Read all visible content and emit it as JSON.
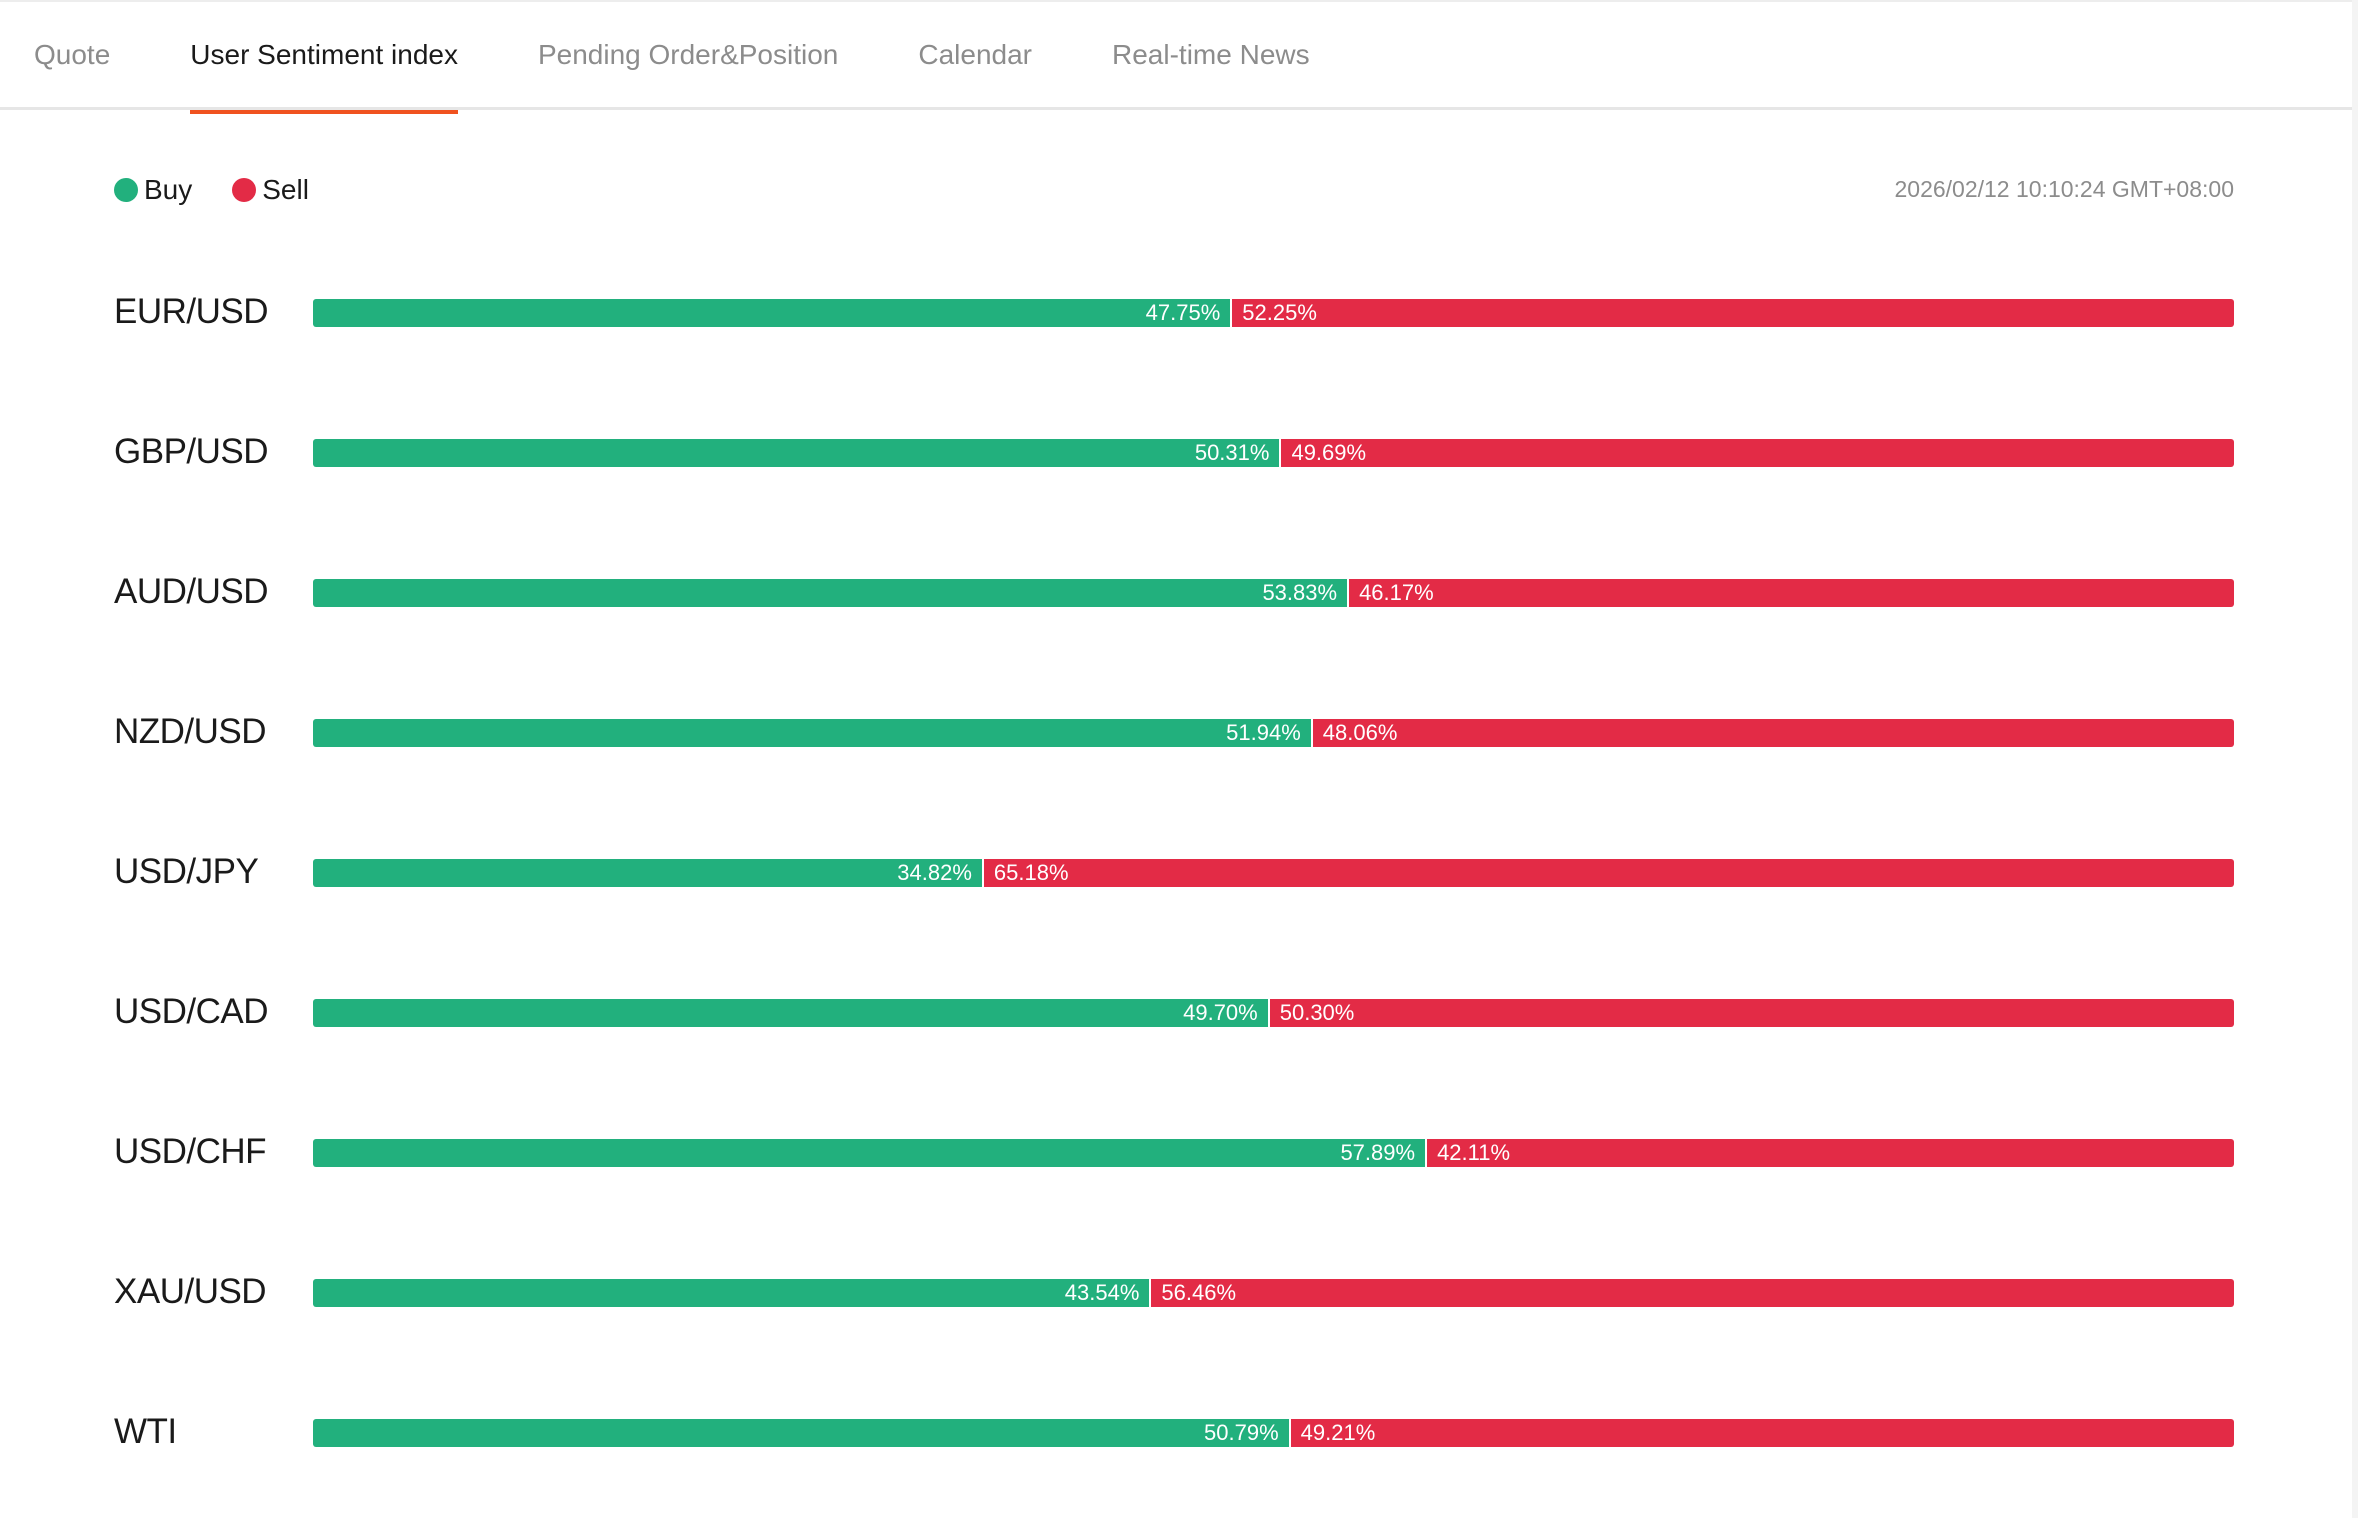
{
  "tabs": [
    {
      "label": "Quote",
      "active": false
    },
    {
      "label": "User Sentiment index",
      "active": true
    },
    {
      "label": "Pending Order&Position",
      "active": false
    },
    {
      "label": "Calendar",
      "active": false
    },
    {
      "label": "Real-time News",
      "active": false
    }
  ],
  "legend": {
    "buy_label": "Buy",
    "sell_label": "Sell"
  },
  "timestamp": "2026/02/12 10:10:24 GMT+08:00",
  "colors": {
    "buy": "#22b07d",
    "sell": "#e32b46",
    "tab_accent": "#f0521f"
  },
  "sentiment": [
    {
      "pair": "EUR/USD",
      "buy_pct": 47.75,
      "buy_label": "47.75%",
      "sell_label": "52.25%"
    },
    {
      "pair": "GBP/USD",
      "buy_pct": 50.31,
      "buy_label": "50.31%",
      "sell_label": "49.69%"
    },
    {
      "pair": "AUD/USD",
      "buy_pct": 53.83,
      "buy_label": "53.83%",
      "sell_label": "46.17%"
    },
    {
      "pair": "NZD/USD",
      "buy_pct": 51.94,
      "buy_label": "51.94%",
      "sell_label": "48.06%"
    },
    {
      "pair": "USD/JPY",
      "buy_pct": 34.82,
      "buy_label": "34.82%",
      "sell_label": "65.18%"
    },
    {
      "pair": "USD/CAD",
      "buy_pct": 49.7,
      "buy_label": "49.70%",
      "sell_label": "50.30%"
    },
    {
      "pair": "USD/CHF",
      "buy_pct": 57.89,
      "buy_label": "57.89%",
      "sell_label": "42.11%"
    },
    {
      "pair": "XAU/USD",
      "buy_pct": 43.54,
      "buy_label": "43.54%",
      "sell_label": "56.46%"
    },
    {
      "pair": "WTI",
      "buy_pct": 50.79,
      "buy_label": "50.79%",
      "sell_label": "49.21%"
    }
  ]
}
